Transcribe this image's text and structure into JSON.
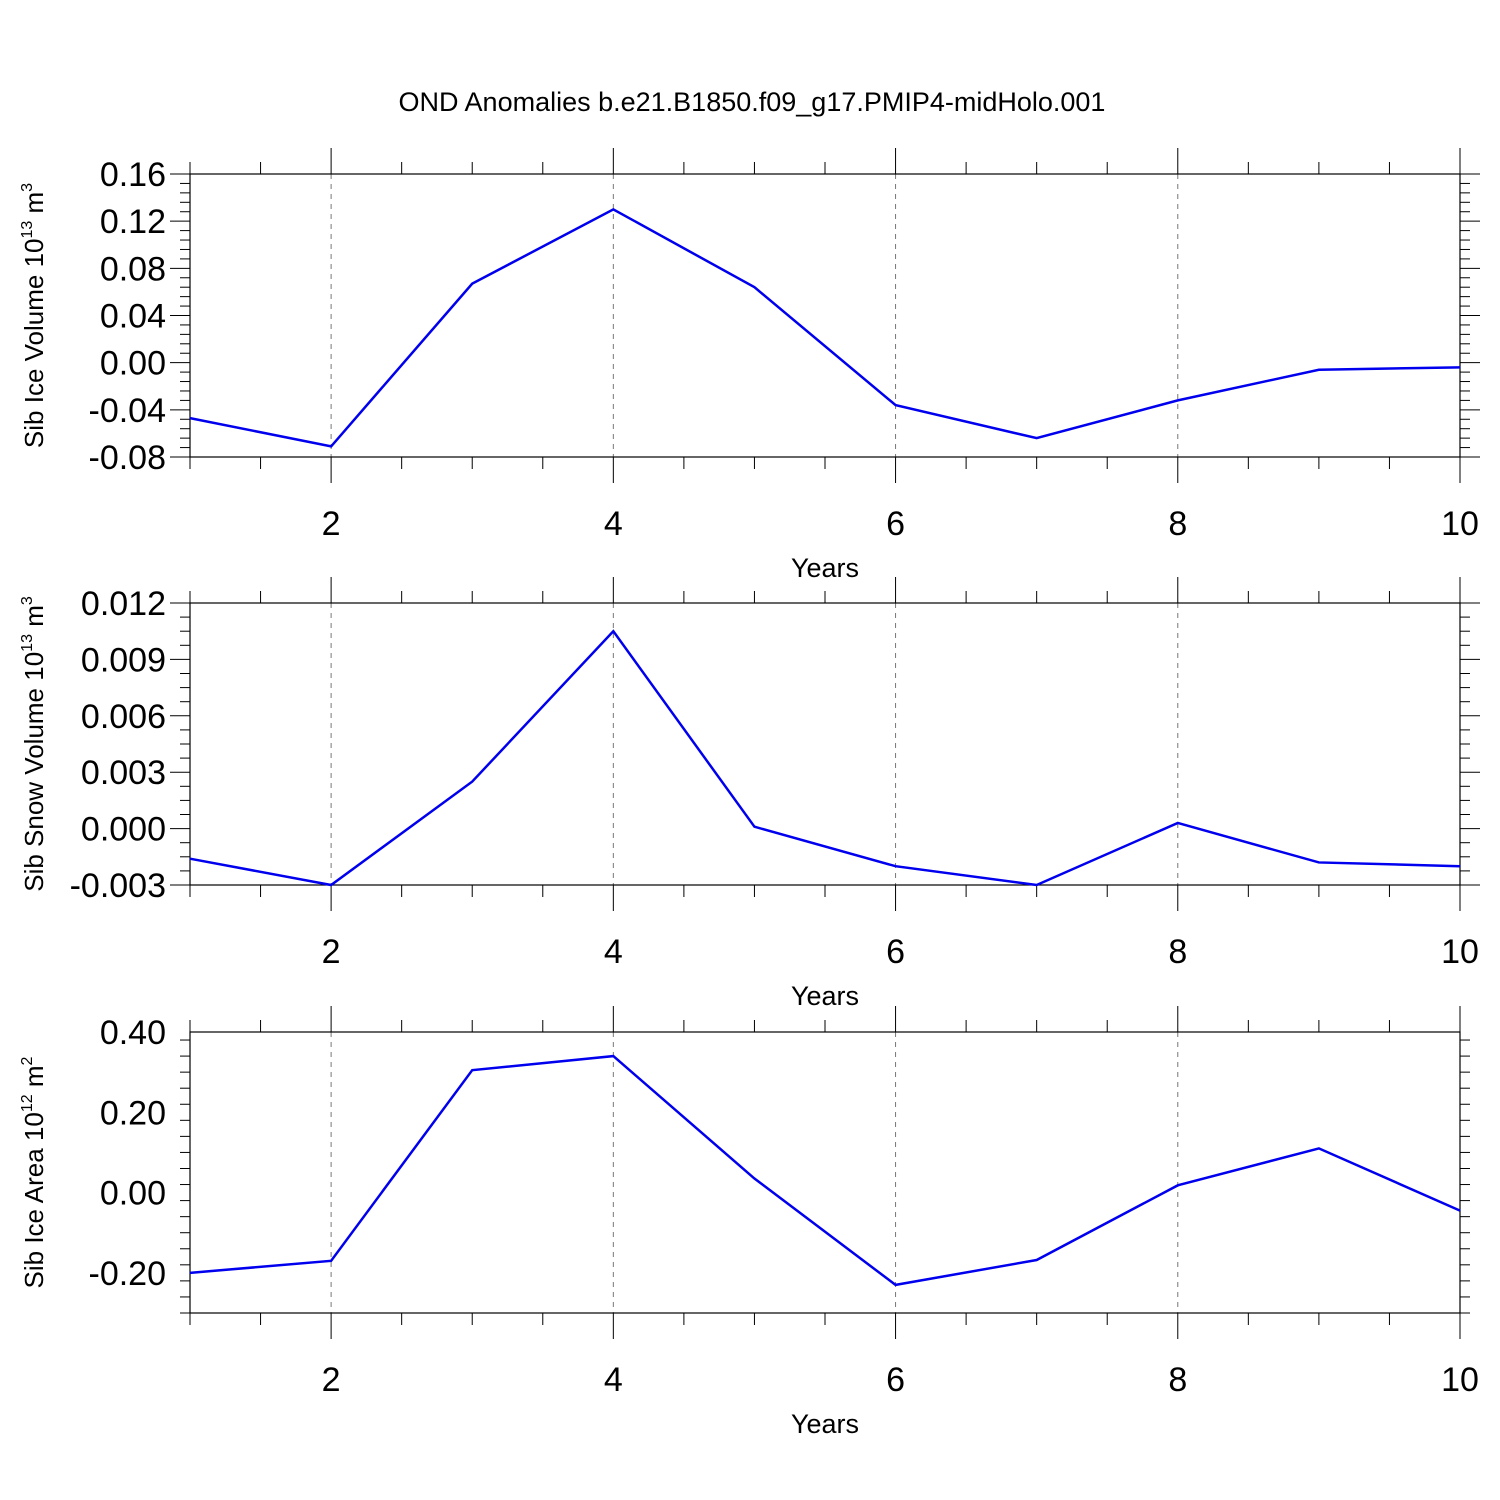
{
  "title": "OND Anomalies b.e21.B1850.f09_g17.PMIP4-midHolo.001",
  "chart_data": [
    {
      "type": "line",
      "title": "",
      "xlabel": "Years",
      "ylabel_main": "Sib Ice Volume 10",
      "ylabel_exp": "13",
      "ylabel_unit": " m",
      "ylabel_unit_exp": "3",
      "xlim": [
        1,
        10
      ],
      "ylim": [
        -0.08,
        0.16
      ],
      "yticks": [
        -0.08,
        -0.04,
        0.0,
        0.04,
        0.08,
        0.12,
        0.16
      ],
      "ytick_labels": [
        "-0.08",
        "-0.04",
        "0.00",
        "0.04",
        "0.08",
        "0.12",
        "0.16"
      ],
      "xticks": [
        2,
        4,
        6,
        8,
        10
      ],
      "xtick_labels": [
        "2",
        "4",
        "6",
        "8",
        "10"
      ],
      "grid_x": [
        2,
        4,
        6,
        8
      ],
      "line_color": "#0000ee",
      "x": [
        1,
        2,
        3,
        4,
        5,
        6,
        7,
        8,
        9,
        10
      ],
      "y": [
        -0.047,
        -0.071,
        0.067,
        0.13,
        0.064,
        -0.036,
        -0.064,
        -0.032,
        -0.006,
        -0.004
      ]
    },
    {
      "type": "line",
      "title": "",
      "xlabel": "Years",
      "ylabel_main": "Sib Snow Volume 10",
      "ylabel_exp": "13",
      "ylabel_unit": " m",
      "ylabel_unit_exp": "3",
      "xlim": [
        1,
        10
      ],
      "ylim": [
        -0.003,
        0.012
      ],
      "yticks": [
        -0.003,
        0.0,
        0.003,
        0.006,
        0.009,
        0.012
      ],
      "ytick_labels": [
        "-0.003",
        "0.000",
        "0.003",
        "0.006",
        "0.009",
        "0.012"
      ],
      "xticks": [
        2,
        4,
        6,
        8,
        10
      ],
      "xtick_labels": [
        "2",
        "4",
        "6",
        "8",
        "10"
      ],
      "grid_x": [
        2,
        4,
        6,
        8
      ],
      "line_color": "#0000ee",
      "x": [
        1,
        2,
        3,
        4,
        5,
        6,
        7,
        8,
        9,
        10
      ],
      "y": [
        -0.0016,
        -0.003,
        0.0025,
        0.0105,
        0.0001,
        -0.002,
        -0.003,
        0.0003,
        -0.0018,
        -0.002
      ]
    },
    {
      "type": "line",
      "title": "",
      "xlabel": "Years",
      "ylabel_main": "Sib Ice Area 10",
      "ylabel_exp": "12",
      "ylabel_unit": " m",
      "ylabel_unit_exp": "2",
      "xlim": [
        1,
        10
      ],
      "ylim": [
        -0.3,
        0.4
      ],
      "yticks": [
        -0.2,
        0.0,
        0.2,
        0.4
      ],
      "ytick_labels": [
        "-0.20",
        "0.00",
        "0.20",
        "0.40"
      ],
      "xticks": [
        2,
        4,
        6,
        8,
        10
      ],
      "xtick_labels": [
        "2",
        "4",
        "6",
        "8",
        "10"
      ],
      "grid_x": [
        2,
        4,
        6,
        8
      ],
      "line_color": "#0000ee",
      "x": [
        1,
        2,
        3,
        4,
        5,
        6,
        7,
        8,
        9,
        10
      ],
      "y": [
        -0.2,
        -0.17,
        0.305,
        0.34,
        0.035,
        -0.23,
        -0.168,
        0.018,
        0.11,
        -0.045
      ]
    }
  ]
}
